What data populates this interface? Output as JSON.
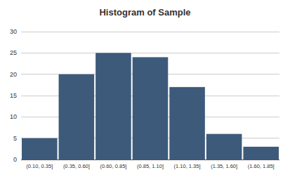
{
  "chart_data": {
    "type": "histogram",
    "title": "Histogram of Sample",
    "bins": [
      0.1,
      0.35,
      0.6,
      0.85,
      1.1,
      1.35,
      1.6,
      1.85
    ],
    "categories": [
      "(0.10, 0.35]",
      "(0.35, 0.60]",
      "(0.60, 0.85]",
      "(0.85, 1.10]",
      "(1.10, 1.35]",
      "(1.35, 1.60]",
      "(1.60, 1.85]"
    ],
    "values": [
      5,
      20,
      25,
      24,
      17,
      6,
      3
    ],
    "color": "#3d5a7b",
    "xlim": [
      0.1,
      1.85
    ],
    "ylim": [
      0,
      30
    ],
    "yticks": [
      0,
      5,
      10,
      15,
      20,
      25,
      30
    ],
    "grid": true
  }
}
